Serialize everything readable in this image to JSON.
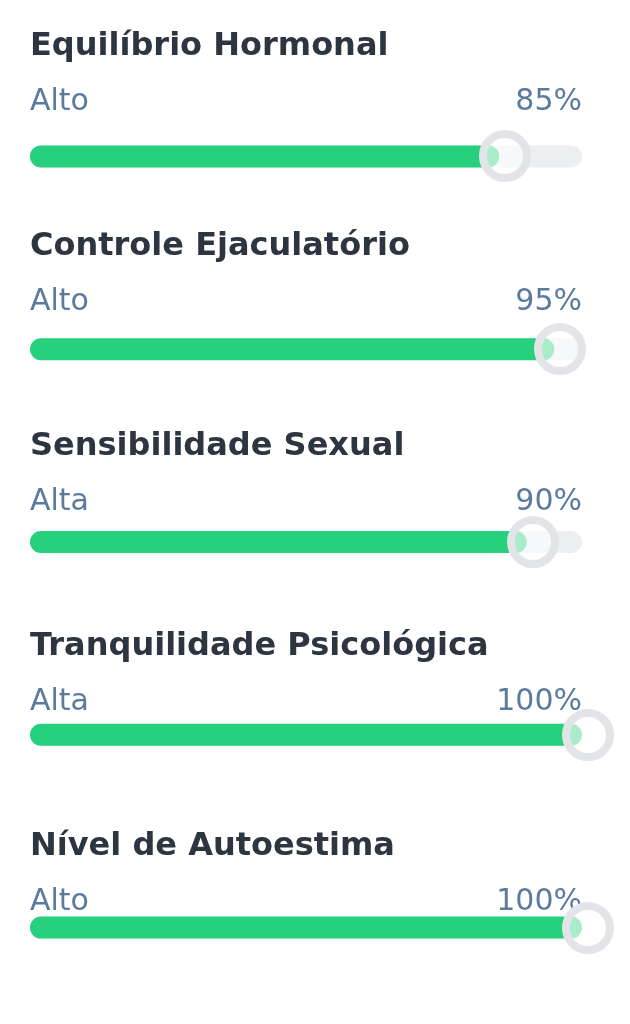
{
  "chart_data": {
    "type": "bar",
    "orientation": "horizontal",
    "categories": [
      "Equilíbrio Hormonal",
      "Controle Ejaculatório",
      "Sensibilidade Sexual",
      "Tranquilidade Psicológica",
      "Nível de Autoestima"
    ],
    "values": [
      85,
      95,
      90,
      100,
      100
    ],
    "value_labels": [
      "85%",
      "95%",
      "90%",
      "100%",
      "100%"
    ],
    "color": "#26d07c",
    "xlim": [
      0,
      100
    ],
    "tick_labels": false,
    "annotations": [
      "Alto",
      "Alto",
      "Alta",
      "Alta",
      "Alto"
    ]
  }
}
